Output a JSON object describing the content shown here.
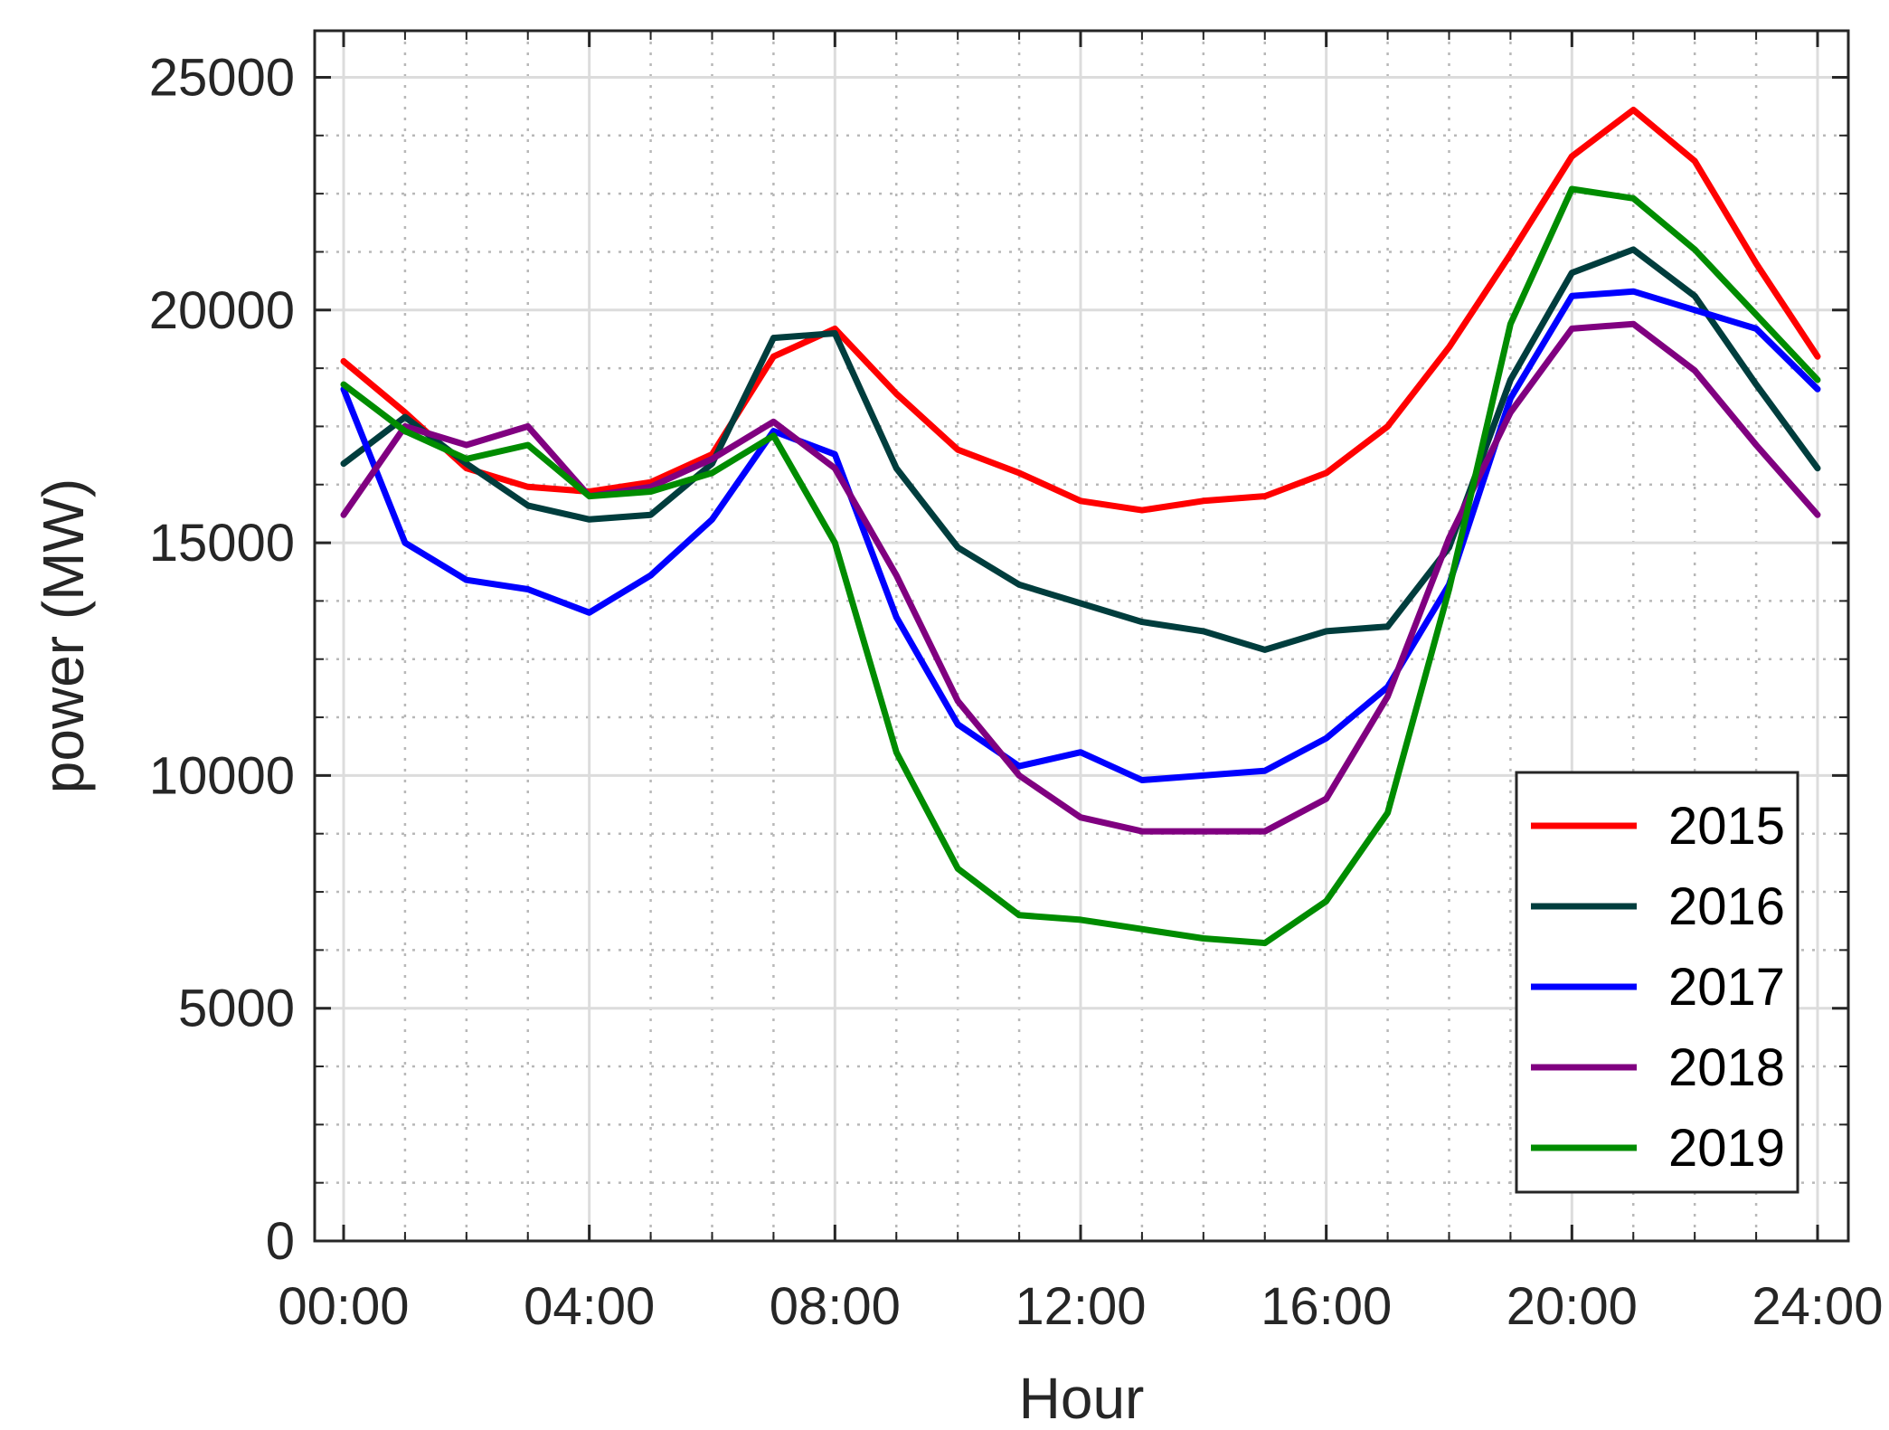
{
  "chart_data": {
    "type": "line",
    "xlabel": "Hour",
    "ylabel": "power (MW)",
    "x": [
      0,
      1,
      2,
      3,
      4,
      5,
      6,
      7,
      8,
      9,
      10,
      11,
      12,
      13,
      14,
      15,
      16,
      17,
      18,
      19,
      20,
      21,
      22,
      23,
      24
    ],
    "xlim": [
      0,
      24
    ],
    "ylim": [
      0,
      26000
    ],
    "x_ticks": [
      {
        "value": 0,
        "label": "00:00"
      },
      {
        "value": 4,
        "label": "04:00"
      },
      {
        "value": 8,
        "label": "08:00"
      },
      {
        "value": 12,
        "label": "12:00"
      },
      {
        "value": 16,
        "label": "16:00"
      },
      {
        "value": 20,
        "label": "20:00"
      },
      {
        "value": 24,
        "label": "24:00"
      }
    ],
    "y_ticks": [
      {
        "value": 0,
        "label": "0"
      },
      {
        "value": 5000,
        "label": "5000"
      },
      {
        "value": 10000,
        "label": "10000"
      },
      {
        "value": 15000,
        "label": "15000"
      },
      {
        "value": 20000,
        "label": "20000"
      },
      {
        "value": 25000,
        "label": "25000"
      }
    ],
    "x_minor_step": 1,
    "y_minor_step": 1250,
    "grid": true,
    "minor_grid": true,
    "legend_position": "bottom-right",
    "series": [
      {
        "name": "2015",
        "color": "#ff0000",
        "values": [
          18900,
          17800,
          16600,
          16200,
          16100,
          16300,
          16900,
          19000,
          19600,
          18200,
          17000,
          16500,
          15900,
          15700,
          15900,
          16000,
          16500,
          17500,
          19200,
          21200,
          23300,
          24300,
          23200,
          21000,
          19000
        ]
      },
      {
        "name": "2016",
        "color": "#003d3d",
        "values": [
          16700,
          17700,
          16700,
          15800,
          15500,
          15600,
          16700,
          19400,
          19500,
          16600,
          14900,
          14100,
          13700,
          13300,
          13100,
          12700,
          13100,
          13200,
          14900,
          18500,
          20800,
          21300,
          20300,
          18400,
          16600
        ]
      },
      {
        "name": "2017",
        "color": "#0000ff",
        "values": [
          18300,
          15000,
          14200,
          14000,
          13500,
          14300,
          15500,
          17400,
          16900,
          13400,
          11100,
          10200,
          10500,
          9900,
          10000,
          10100,
          10800,
          11900,
          14100,
          18100,
          20300,
          20400,
          20000,
          19600,
          18300
        ]
      },
      {
        "name": "2018",
        "color": "#800080",
        "values": [
          15600,
          17500,
          17100,
          17500,
          16000,
          16200,
          16800,
          17600,
          16600,
          14300,
          11600,
          10000,
          9100,
          8800,
          8800,
          8800,
          9500,
          11700,
          15100,
          17800,
          19600,
          19700,
          18700,
          17100,
          15600
        ]
      },
      {
        "name": "2019",
        "color": "#008c00",
        "values": [
          18400,
          17400,
          16800,
          17100,
          16000,
          16100,
          16500,
          17300,
          15000,
          10500,
          8000,
          7000,
          6900,
          6700,
          6500,
          6400,
          7300,
          9200,
          14000,
          19700,
          22600,
          22400,
          21300,
          19900,
          18500
        ]
      }
    ]
  }
}
